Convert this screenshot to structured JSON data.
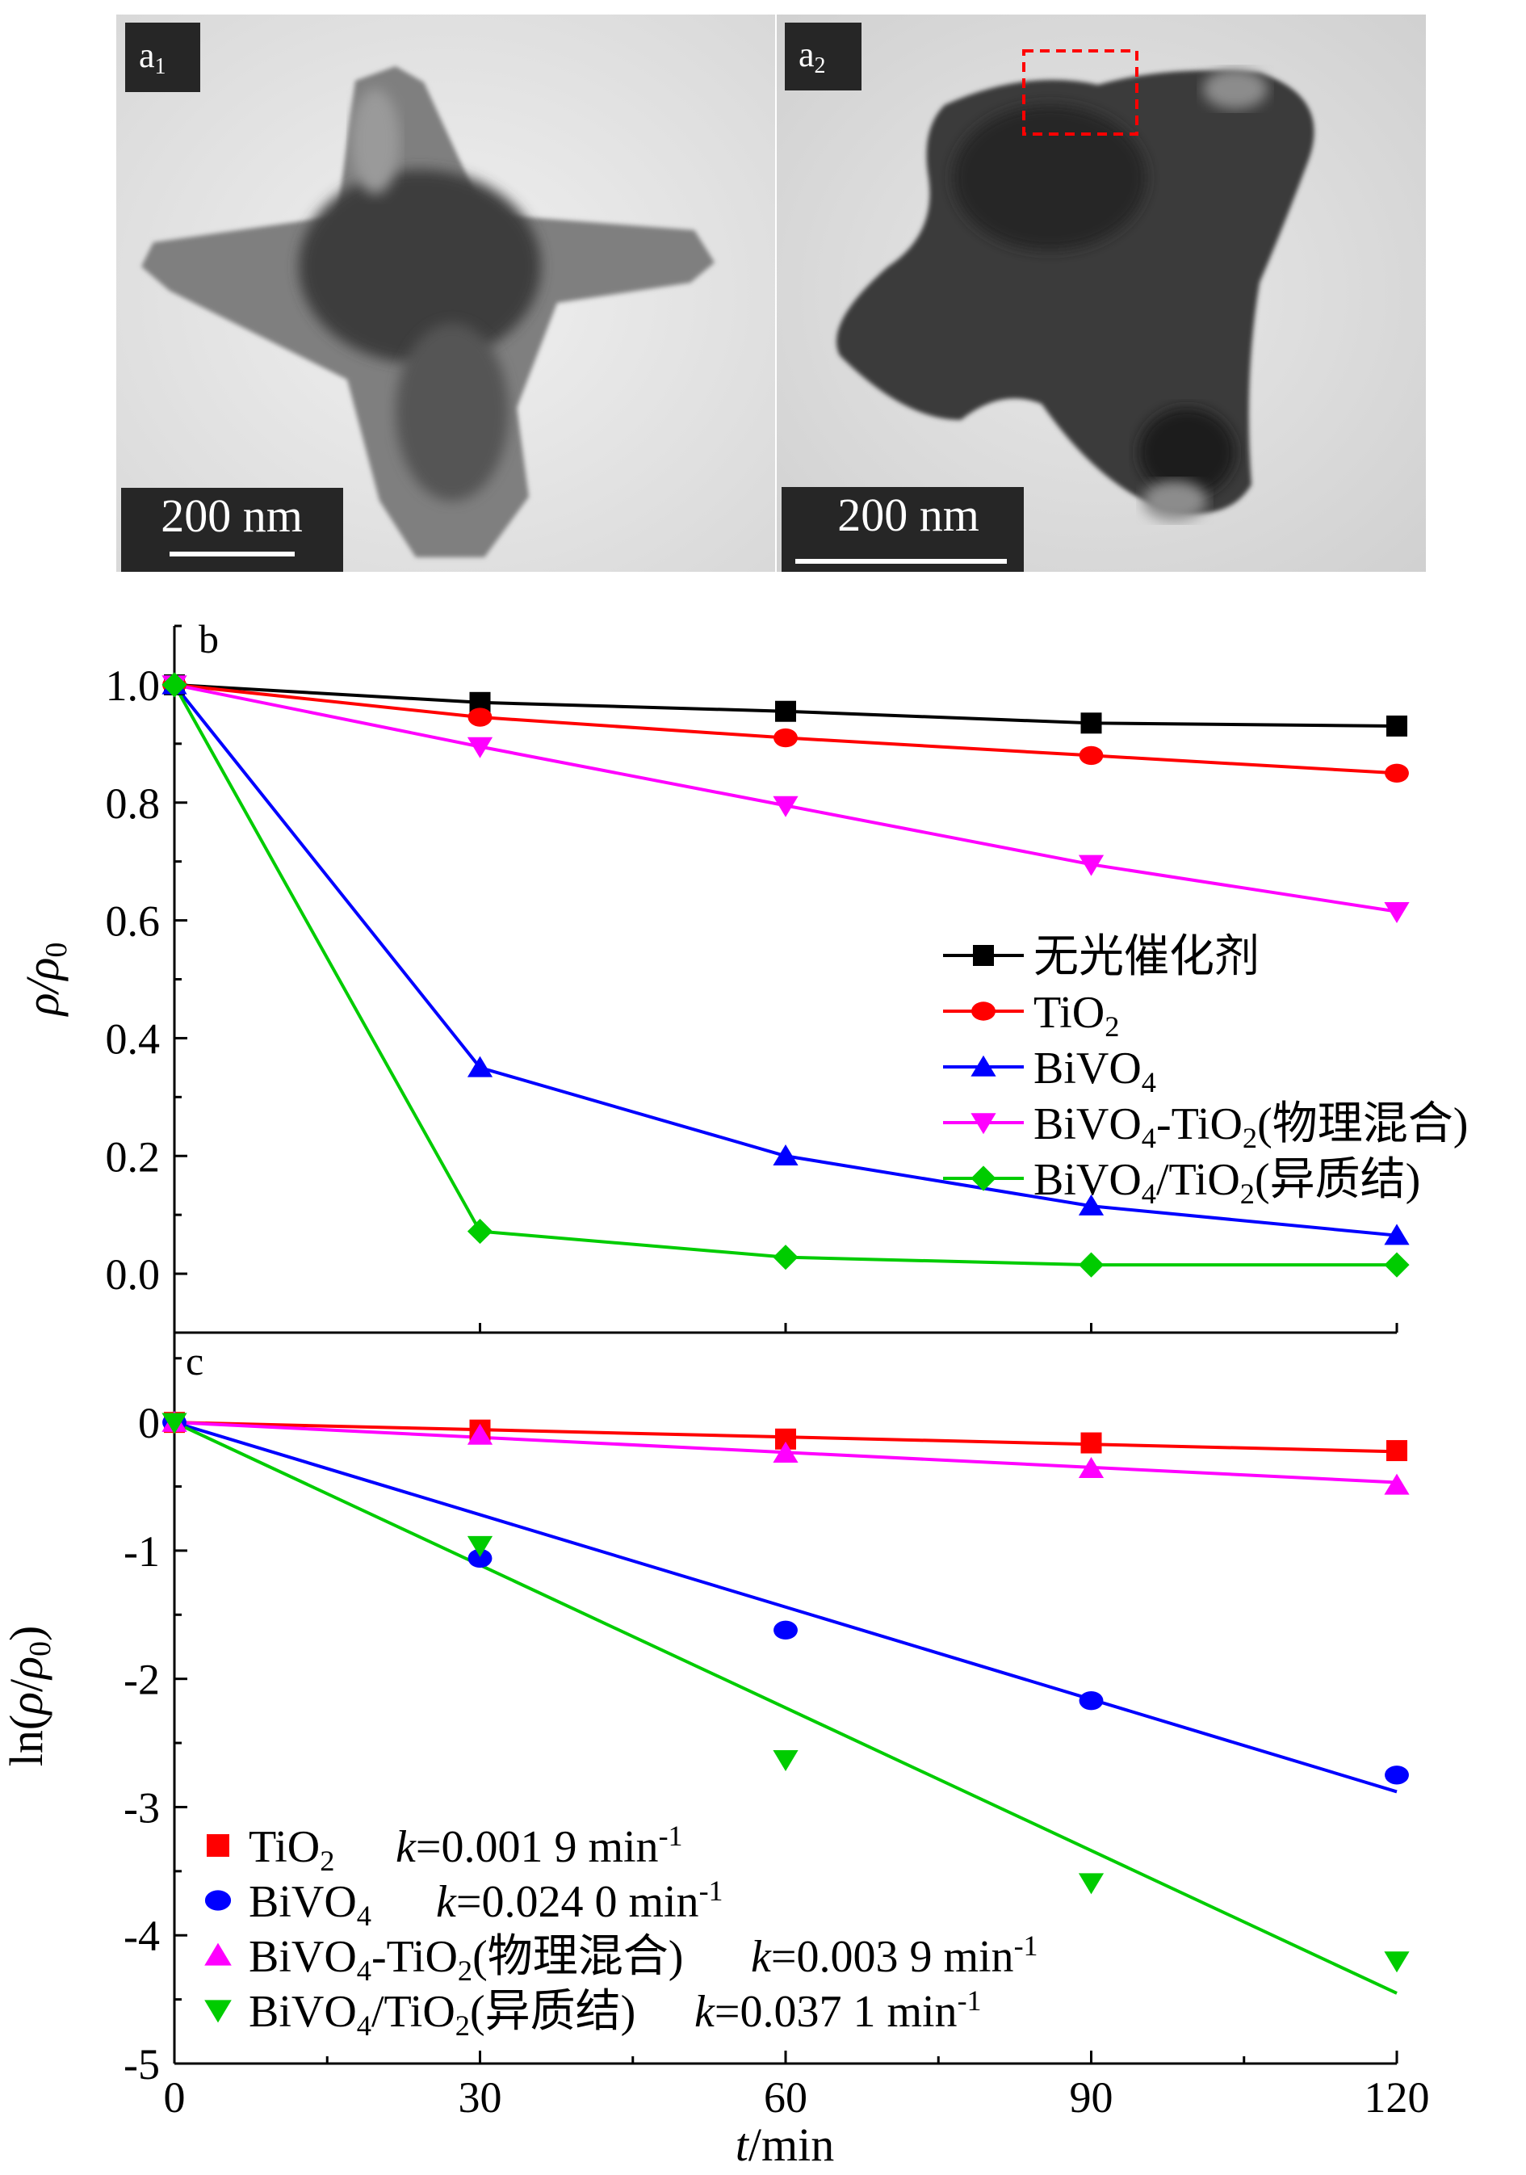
{
  "panels": {
    "a1": {
      "label_base": "a",
      "label_sub": "1",
      "scalebar": "200 nm"
    },
    "a2": {
      "label_base": "a",
      "label_sub": "2",
      "scalebar": "200 nm"
    }
  },
  "chart_data": [
    {
      "panel": "b",
      "type": "line",
      "ylabel": "ρ/ρ0",
      "ylim": [
        -0.1,
        1.1
      ],
      "xlim": [
        0,
        120
      ],
      "yticks": [
        "0.0",
        "0.2",
        "0.4",
        "0.6",
        "0.8",
        "1.0"
      ],
      "legend_position": "center-right",
      "x": [
        0,
        30,
        60,
        90,
        120
      ],
      "series": [
        {
          "name": "无光催化剂",
          "color": "#000000",
          "marker": "square",
          "values": [
            1.0,
            0.97,
            0.955,
            0.935,
            0.93
          ]
        },
        {
          "name": "TiO2",
          "color": "#ff0000",
          "marker": "circle",
          "values": [
            1.0,
            0.945,
            0.91,
            0.88,
            0.85
          ]
        },
        {
          "name": "BiVO4",
          "color": "#0000ff",
          "marker": "triangle-up",
          "values": [
            1.0,
            0.35,
            0.2,
            0.115,
            0.065
          ]
        },
        {
          "name": "BiVO4-TiO2(物理混合)",
          "color": "#ff00ff",
          "marker": "triangle-down",
          "values": [
            1.0,
            0.895,
            0.795,
            0.695,
            0.615
          ]
        },
        {
          "name": "BiVO4/TiO2(异质结)",
          "color": "#00cc00",
          "marker": "diamond",
          "values": [
            1.0,
            0.072,
            0.028,
            0.015,
            0.015
          ]
        }
      ]
    },
    {
      "panel": "c",
      "type": "scatter",
      "xlabel": "t/min",
      "ylabel": "ln(ρ/ρ0)",
      "xlim": [
        0,
        120
      ],
      "ylim": [
        -5.0,
        0.7
      ],
      "xticks": [
        "0",
        "30",
        "60",
        "90",
        "120"
      ],
      "yticks": [
        "0",
        "-1",
        "-2",
        "-3",
        "-4",
        "-5"
      ],
      "legend_position": "bottom-left",
      "x": [
        0,
        30,
        60,
        90,
        120
      ],
      "series": [
        {
          "name": "TiO2",
          "k": "k=0.001 9 min-1",
          "slope": -0.0019,
          "color": "#ff0000",
          "marker": "square",
          "values": [
            0,
            -0.06,
            -0.13,
            -0.16,
            -0.22
          ]
        },
        {
          "name": "BiVO4",
          "k": "k=0.024 0 min-1",
          "slope": -0.024,
          "color": "#0000ff",
          "marker": "circle",
          "values": [
            0,
            -1.06,
            -1.62,
            -2.17,
            -2.75
          ]
        },
        {
          "name": "BiVO4-TiO2(物理混合)",
          "k": "k=0.003 9 min-1",
          "slope": -0.0039,
          "color": "#ff00ff",
          "marker": "triangle-up",
          "values": [
            0,
            -0.1,
            -0.24,
            -0.36,
            -0.49
          ]
        },
        {
          "name": "BiVO4/TiO2(异质结)",
          "k": "k=0.037 1 min-1",
          "slope": -0.0371,
          "color": "#00cc00",
          "marker": "triangle-down",
          "values": [
            0,
            -0.96,
            -2.63,
            -3.59,
            -4.2
          ]
        }
      ]
    }
  ]
}
